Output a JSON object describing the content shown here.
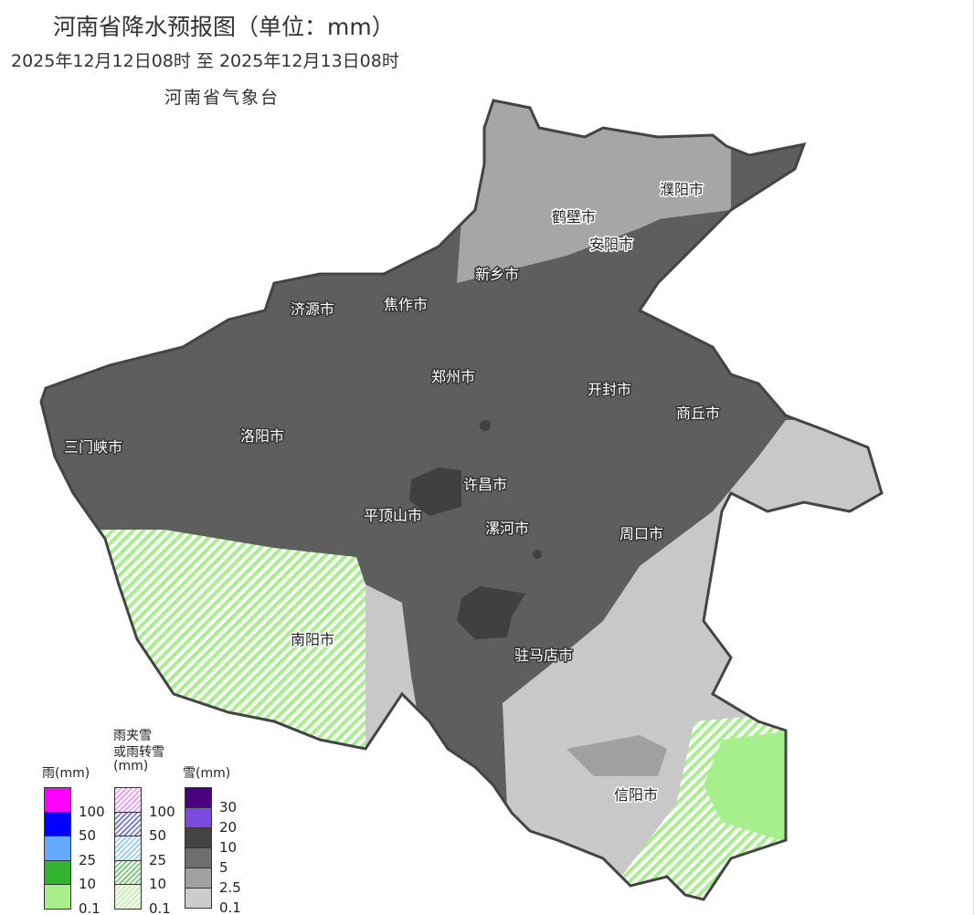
{
  "header": {
    "title": "河南省降水预报图（单位：mm）",
    "period": "2025年12月12日08时  至  2025年12月13日08时",
    "issuer": "河南省气象台"
  },
  "cities": [
    "濮阳市",
    "鹤壁市",
    "安阳市",
    "新乡市",
    "济源市",
    "焦作市",
    "郑州市",
    "开封市",
    "商丘市",
    "三门峡市",
    "洛阳市",
    "许昌市",
    "平顶山市",
    "漯河市",
    "周口市",
    "南阳市",
    "驻马店市",
    "信阳市"
  ],
  "legend": {
    "rain": {
      "title": "雨(mm)",
      "colors": [
        "#ff00ff",
        "#0000ff",
        "#64aaff",
        "#32b432",
        "#a6ef8c"
      ],
      "ticks": [
        "100",
        "50",
        "25",
        "10",
        "0.1"
      ]
    },
    "mixed": {
      "title_line1": "雨夹雪",
      "title_line2": "或雨转雪",
      "title_line3": "(mm)",
      "colors": [
        "#f0a0f0",
        "#8080d0",
        "#a0d0f0",
        "#80c880",
        "#c8f0b0"
      ],
      "ticks": [
        "100",
        "50",
        "25",
        "10",
        "0.1"
      ]
    },
    "snow": {
      "title": "雪(mm)",
      "colors": [
        "#4b0082",
        "#7b4be0",
        "#444444",
        "#6e6e6e",
        "#a0a0a0",
        "#cccccc"
      ],
      "ticks": [
        "30",
        "20",
        "10",
        "5",
        "2.5",
        "0.1"
      ]
    }
  }
}
